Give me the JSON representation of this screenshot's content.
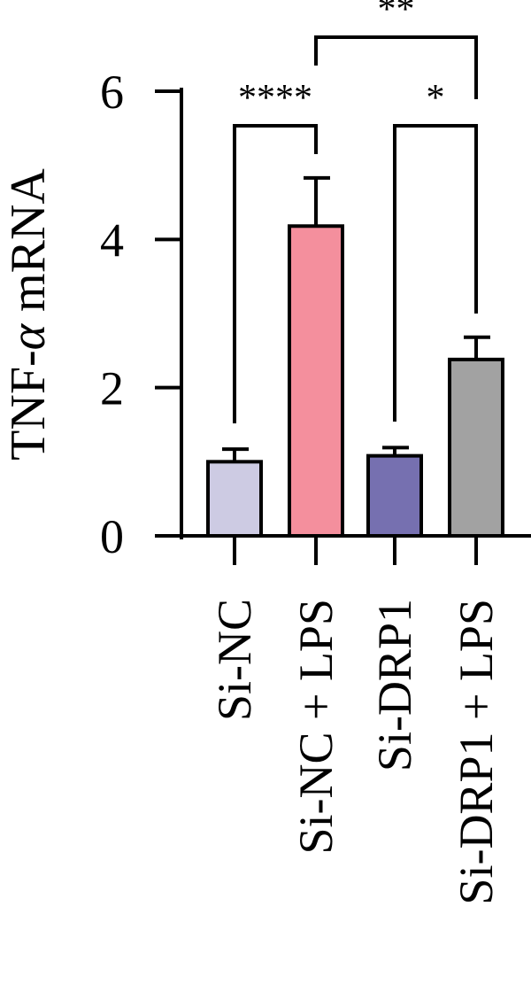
{
  "chart_data": {
    "type": "bar",
    "categories": [
      "Si-NC",
      "Si-NC + LPS",
      "Si-DRP1",
      "Si-DRP1 + LPS"
    ],
    "values": [
      1.0,
      4.18,
      1.08,
      2.38
    ],
    "errors": [
      0.17,
      0.65,
      0.11,
      0.3
    ],
    "colors": [
      "#cdcbe3",
      "#f48f9d",
      "#7670b0",
      "#a2a2a2"
    ],
    "ylabel_main": "TNF-",
    "ylabel_italic": "α",
    "ylabel_tail": " mRNA",
    "ylim": [
      0,
      6
    ],
    "yticks": [
      0,
      2,
      4,
      6
    ],
    "significance": [
      {
        "from": 0,
        "to": 1,
        "label": "****",
        "level": 1
      },
      {
        "from": 2,
        "to": 3,
        "label": "*",
        "level": 1
      },
      {
        "from": 1,
        "to": 3,
        "label": "**",
        "level": 2
      }
    ],
    "grid": false
  }
}
